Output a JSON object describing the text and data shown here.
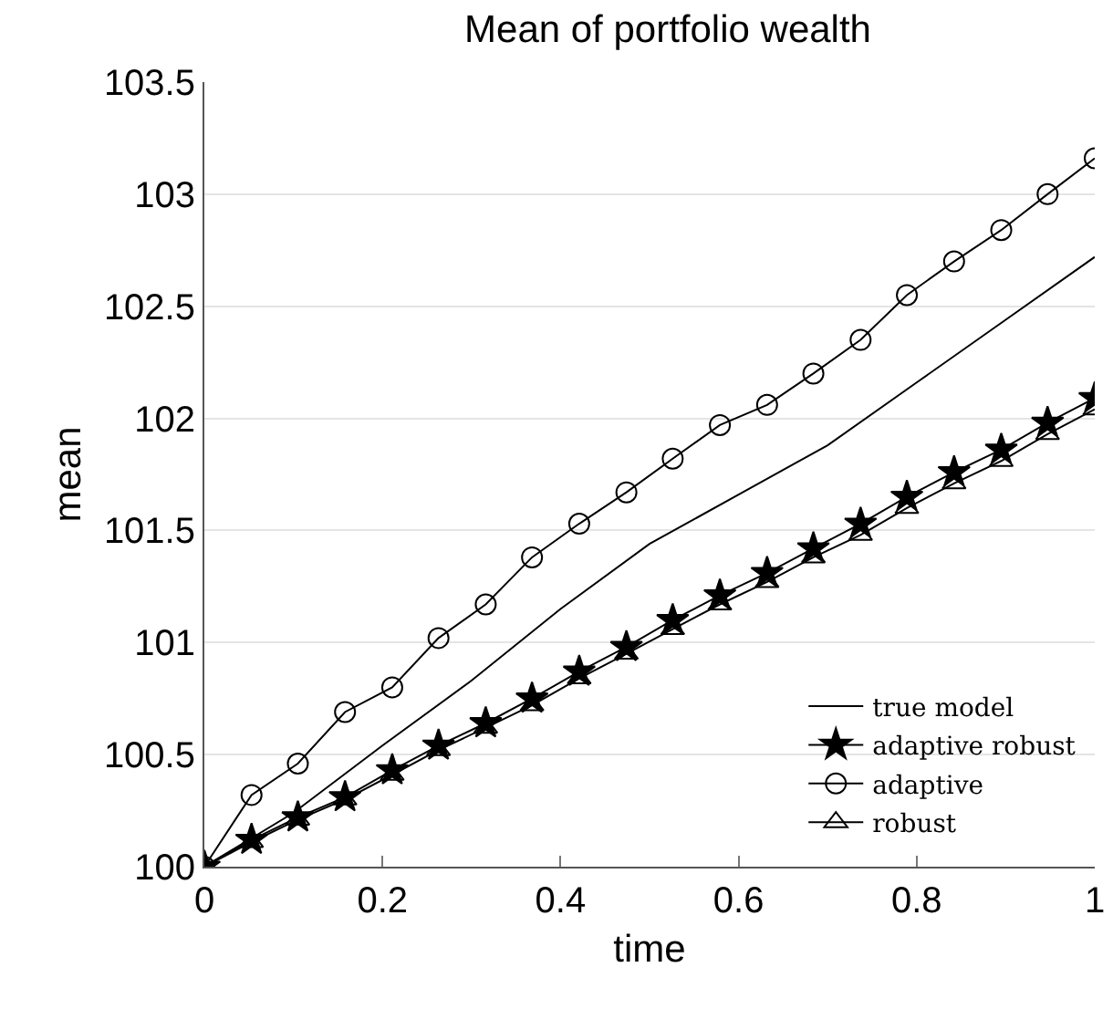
{
  "chart_data": {
    "type": "line",
    "title": "Mean of portfolio wealth",
    "xlabel": "time",
    "ylabel": "mean",
    "xlim": [
      0,
      1
    ],
    "xticks": [
      0,
      0.2,
      0.4,
      0.6,
      0.8,
      1
    ],
    "ylim": [
      100,
      103.5
    ],
    "yticks": [
      100,
      100.5,
      101,
      101.5,
      102,
      102.5,
      103,
      103.5
    ],
    "grid": "y",
    "legend": "bottom right",
    "series": [
      {
        "name": "adaptive robust",
        "color": "#000000",
        "marker": "star",
        "x": [
          0,
          0.053,
          0.105,
          0.158,
          0.211,
          0.263,
          0.316,
          0.368,
          0.421,
          0.474,
          0.526,
          0.579,
          0.632,
          0.684,
          0.737,
          0.789,
          0.842,
          0.895,
          0.947,
          1
        ],
        "values": [
          100,
          100.12,
          100.22,
          100.31,
          100.43,
          100.54,
          100.64,
          100.75,
          100.87,
          100.98,
          101.1,
          101.21,
          101.31,
          101.42,
          101.53,
          101.65,
          101.76,
          101.86,
          101.98,
          102.09
        ]
      },
      {
        "name": "adaptive",
        "color": "#000000",
        "marker": "circle",
        "x": [
          0,
          0.053,
          0.105,
          0.158,
          0.211,
          0.263,
          0.316,
          0.368,
          0.421,
          0.474,
          0.526,
          0.579,
          0.632,
          0.684,
          0.737,
          0.789,
          0.842,
          0.895,
          0.947,
          1
        ],
        "values": [
          100,
          100.32,
          100.46,
          100.69,
          100.8,
          101.02,
          101.17,
          101.38,
          101.53,
          101.67,
          101.82,
          101.97,
          102.06,
          102.2,
          102.35,
          102.55,
          102.7,
          102.84,
          103,
          103.16
        ]
      },
      {
        "name": "robust",
        "color": "#000000",
        "marker": "triangle",
        "x": [
          0,
          0.053,
          0.105,
          0.158,
          0.211,
          0.263,
          0.316,
          0.368,
          0.421,
          0.474,
          0.526,
          0.579,
          0.632,
          0.684,
          0.737,
          0.789,
          0.842,
          0.895,
          0.947,
          1
        ],
        "values": [
          100,
          100.11,
          100.21,
          100.3,
          100.41,
          100.52,
          100.62,
          100.72,
          100.84,
          100.95,
          101.06,
          101.17,
          101.27,
          101.38,
          101.48,
          101.6,
          101.71,
          101.81,
          101.93,
          102.04
        ]
      },
      {
        "name": "true model",
        "color": "#000000",
        "marker": "none",
        "x": [
          0,
          0.1,
          0.2,
          0.3,
          0.4,
          0.5,
          0.6,
          0.7,
          0.8,
          0.9,
          1
        ],
        "values": [
          100,
          100.24,
          100.54,
          100.83,
          101.15,
          101.44,
          101.66,
          101.88,
          102.16,
          102.44,
          102.72
        ]
      }
    ]
  }
}
